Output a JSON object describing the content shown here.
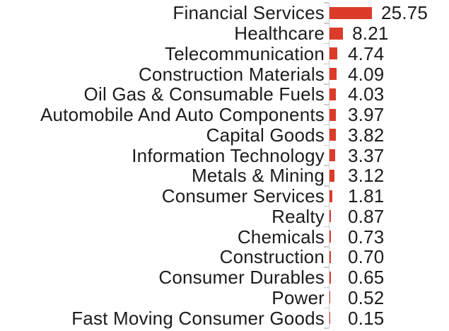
{
  "chart_data": {
    "type": "bar",
    "orientation": "horizontal",
    "title": "",
    "xlabel": "",
    "ylabel": "",
    "grid": false,
    "legend": null,
    "xlim": [
      0,
      25.75
    ],
    "categories": [
      "Financial Services",
      "Healthcare",
      "Telecommunication",
      "Construction Materials",
      "Oil Gas & Consumable Fuels",
      "Automobile And Auto Components",
      "Capital Goods",
      "Information Technology",
      "Metals & Mining",
      "Consumer Services",
      "Realty",
      "Chemicals",
      "Construction",
      "Consumer Durables",
      "Power",
      "Fast Moving Consumer Goods"
    ],
    "values": [
      25.75,
      8.21,
      4.74,
      4.09,
      4.03,
      3.97,
      3.82,
      3.37,
      3.12,
      1.81,
      0.87,
      0.73,
      0.7,
      0.65,
      0.52,
      0.15
    ],
    "value_labels": [
      "25.75",
      "8.21",
      "4.74",
      "4.09",
      "4.03",
      "3.97",
      "3.82",
      "3.37",
      "3.12",
      "1.81",
      "0.87",
      "0.73",
      "0.70",
      "0.65",
      "0.52",
      "0.15"
    ],
    "colors": {
      "bar": "#dc3b2a",
      "axis": "#cccccc",
      "text": "#1c1c1c",
      "background": "#ffffff"
    }
  }
}
